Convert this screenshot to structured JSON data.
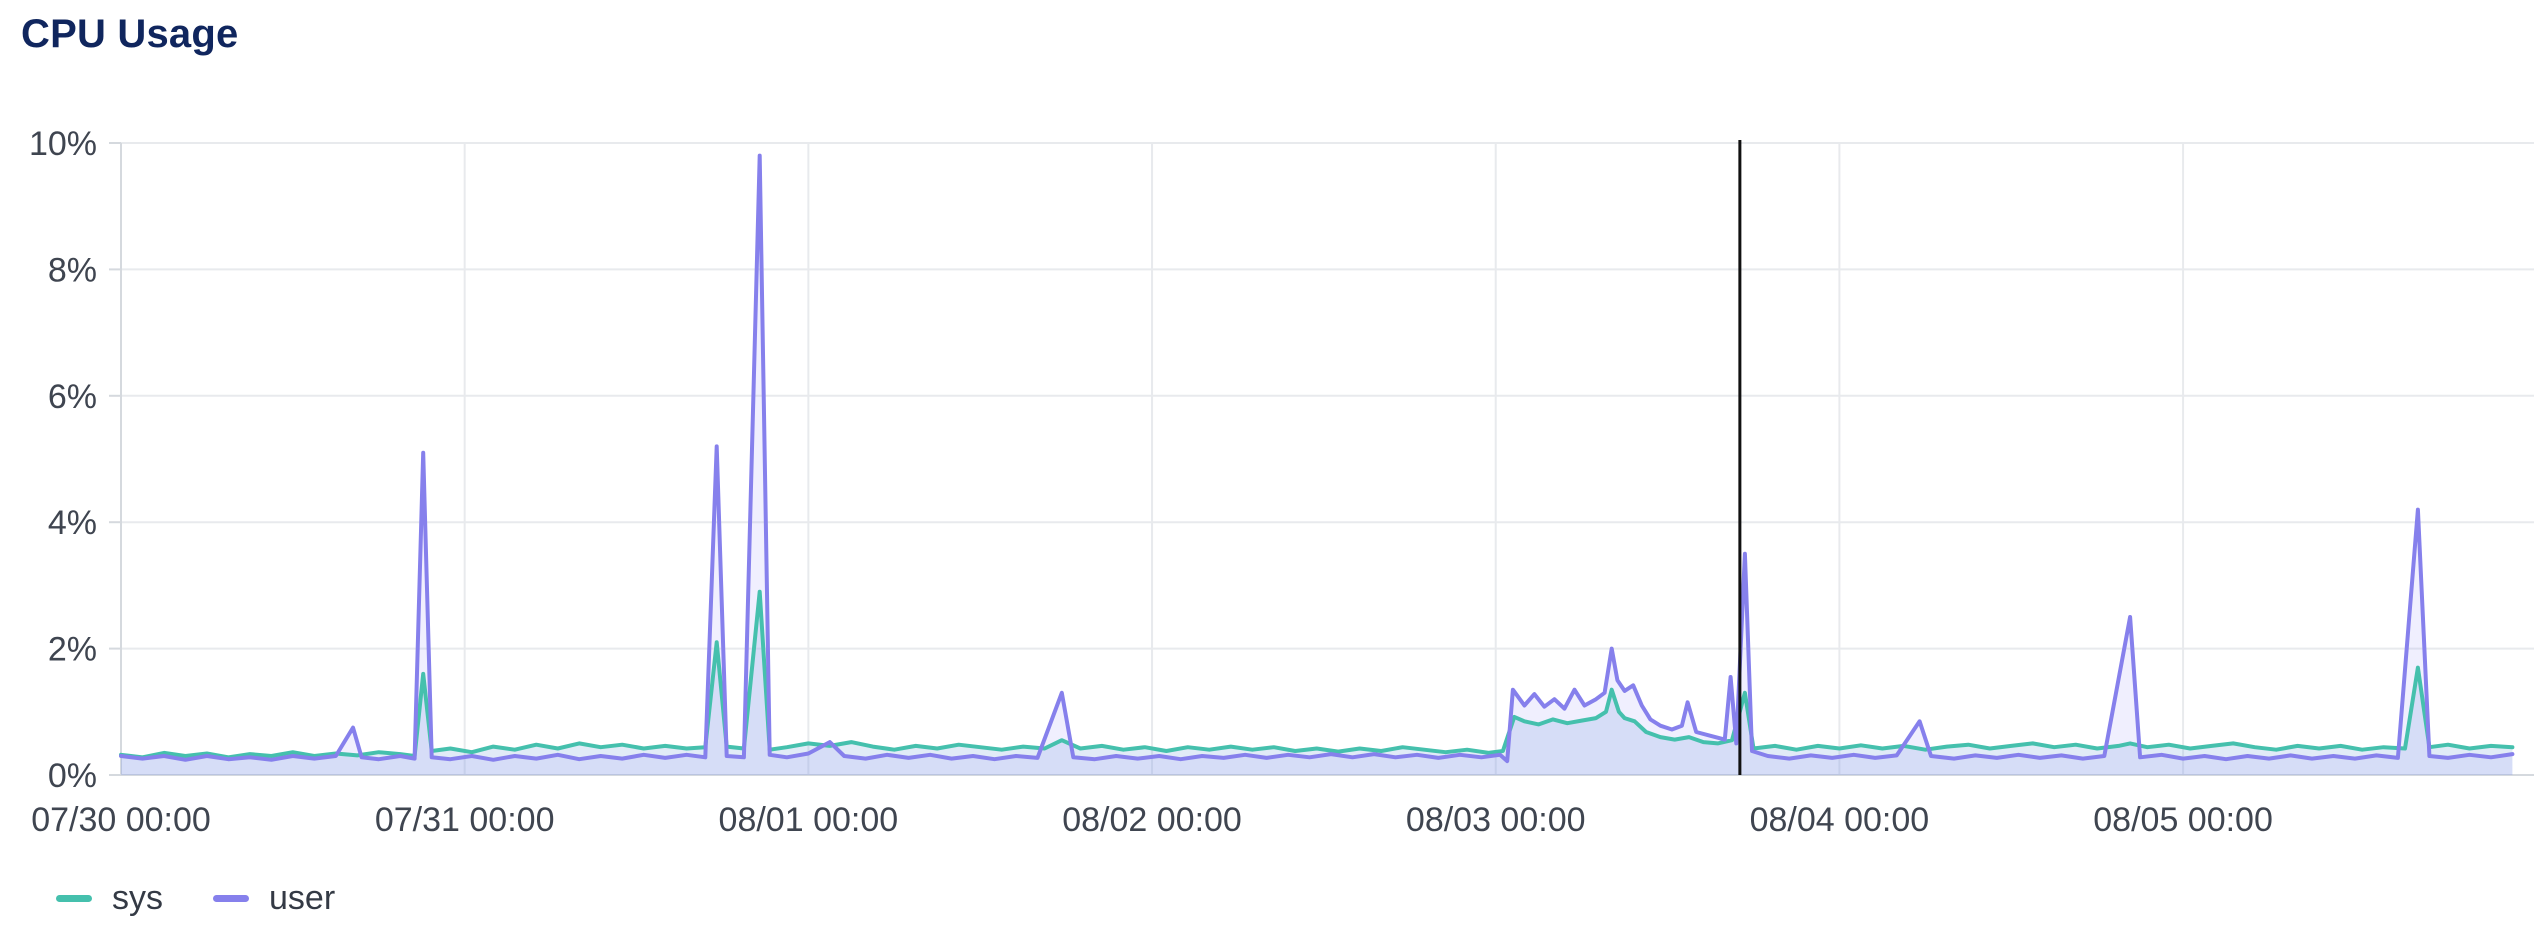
{
  "panel": {
    "title": "CPU Usage"
  },
  "colors": {
    "title": "#10265e",
    "axis_text": "#3f4550",
    "grid": "#e8eaed",
    "axis_line": "#d5d9de",
    "annotation": "#111111",
    "sys_line": "#45c0ad",
    "user_line": "#8680ec",
    "sys_fill": "rgba(120,165,220,0.22)",
    "user_fill": "rgba(150,140,245,0.14)"
  },
  "chart_data": {
    "type": "line",
    "area": true,
    "title": "CPU Usage",
    "xlabel": "",
    "ylabel": "",
    "grid": true,
    "legend_position": "bottom-left",
    "x_unit": "hours since 07/30 00:00",
    "x_domain": [
      0,
      167
    ],
    "ylim": [
      0,
      10
    ],
    "y_ticks": [
      0,
      2,
      4,
      6,
      8,
      10
    ],
    "y_tick_labels": [
      "0%",
      "2%",
      "4%",
      "6%",
      "8%",
      "10%"
    ],
    "x_ticks": [
      0,
      24,
      48,
      72,
      96,
      120,
      144
    ],
    "x_tick_labels": [
      "07/30 00:00",
      "07/31 00:00",
      "08/01 00:00",
      "08/02 00:00",
      "08/03 00:00",
      "08/04 00:00",
      "08/05 00:00"
    ],
    "annotation_line": {
      "hour": 113.05,
      "label": "time marker 08/03 ~17:00"
    },
    "series": [
      {
        "name": "sys",
        "points": [
          [
            0,
            0.32
          ],
          [
            1.5,
            0.28
          ],
          [
            3,
            0.35
          ],
          [
            4.5,
            0.3
          ],
          [
            6,
            0.34
          ],
          [
            7.5,
            0.28
          ],
          [
            9,
            0.33
          ],
          [
            10.5,
            0.3
          ],
          [
            12,
            0.36
          ],
          [
            13.5,
            0.3
          ],
          [
            15,
            0.34
          ],
          [
            16.5,
            0.31
          ],
          [
            18,
            0.36
          ],
          [
            19.5,
            0.33
          ],
          [
            20.5,
            0.3
          ],
          [
            21.1,
            1.6
          ],
          [
            21.7,
            0.38
          ],
          [
            23,
            0.42
          ],
          [
            24.5,
            0.36
          ],
          [
            26,
            0.45
          ],
          [
            27.5,
            0.4
          ],
          [
            29,
            0.48
          ],
          [
            30.5,
            0.42
          ],
          [
            32,
            0.5
          ],
          [
            33.5,
            0.44
          ],
          [
            35,
            0.48
          ],
          [
            36.5,
            0.42
          ],
          [
            38,
            0.46
          ],
          [
            39.5,
            0.42
          ],
          [
            40.8,
            0.44
          ],
          [
            41.6,
            2.1
          ],
          [
            42.3,
            0.45
          ],
          [
            43.5,
            0.42
          ],
          [
            44.6,
            2.9
          ],
          [
            45.3,
            0.4
          ],
          [
            46.5,
            0.44
          ],
          [
            48,
            0.5
          ],
          [
            49.5,
            0.46
          ],
          [
            51,
            0.52
          ],
          [
            52.5,
            0.45
          ],
          [
            54,
            0.4
          ],
          [
            55.5,
            0.46
          ],
          [
            57,
            0.42
          ],
          [
            58.5,
            0.48
          ],
          [
            60,
            0.44
          ],
          [
            61.5,
            0.4
          ],
          [
            63,
            0.45
          ],
          [
            64.5,
            0.42
          ],
          [
            65.7,
            0.55
          ],
          [
            67,
            0.42
          ],
          [
            68.5,
            0.46
          ],
          [
            70,
            0.4
          ],
          [
            71.5,
            0.44
          ],
          [
            73,
            0.38
          ],
          [
            74.5,
            0.44
          ],
          [
            76,
            0.4
          ],
          [
            77.5,
            0.45
          ],
          [
            79,
            0.4
          ],
          [
            80.5,
            0.44
          ],
          [
            82,
            0.38
          ],
          [
            83.5,
            0.42
          ],
          [
            85,
            0.37
          ],
          [
            86.5,
            0.42
          ],
          [
            88,
            0.38
          ],
          [
            89.5,
            0.44
          ],
          [
            91,
            0.4
          ],
          [
            92.5,
            0.36
          ],
          [
            94,
            0.4
          ],
          [
            95.5,
            0.35
          ],
          [
            96.5,
            0.38
          ],
          [
            97.3,
            0.92
          ],
          [
            98,
            0.85
          ],
          [
            99,
            0.8
          ],
          [
            100,
            0.88
          ],
          [
            101,
            0.82
          ],
          [
            102,
            0.86
          ],
          [
            103,
            0.9
          ],
          [
            103.7,
            1.0
          ],
          [
            104.1,
            1.35
          ],
          [
            104.6,
            1.0
          ],
          [
            105,
            0.9
          ],
          [
            105.7,
            0.85
          ],
          [
            106.5,
            0.68
          ],
          [
            107.5,
            0.6
          ],
          [
            108.5,
            0.56
          ],
          [
            109.5,
            0.6
          ],
          [
            110.5,
            0.52
          ],
          [
            111.5,
            0.5
          ],
          [
            112.5,
            0.55
          ],
          [
            113.4,
            1.3
          ],
          [
            114,
            0.42
          ],
          [
            115.5,
            0.46
          ],
          [
            117,
            0.4
          ],
          [
            118.5,
            0.46
          ],
          [
            120,
            0.42
          ],
          [
            121.5,
            0.47
          ],
          [
            123,
            0.42
          ],
          [
            124.5,
            0.46
          ],
          [
            126,
            0.4
          ],
          [
            127.5,
            0.45
          ],
          [
            129,
            0.48
          ],
          [
            130.5,
            0.42
          ],
          [
            132,
            0.46
          ],
          [
            133.5,
            0.5
          ],
          [
            135,
            0.44
          ],
          [
            136.5,
            0.48
          ],
          [
            138,
            0.42
          ],
          [
            139.5,
            0.46
          ],
          [
            140.3,
            0.5
          ],
          [
            141.5,
            0.44
          ],
          [
            143,
            0.48
          ],
          [
            144.5,
            0.42
          ],
          [
            146,
            0.46
          ],
          [
            147.5,
            0.5
          ],
          [
            149,
            0.44
          ],
          [
            150.5,
            0.4
          ],
          [
            152,
            0.46
          ],
          [
            153.5,
            0.42
          ],
          [
            155,
            0.46
          ],
          [
            156.5,
            0.4
          ],
          [
            158,
            0.44
          ],
          [
            159.5,
            0.42
          ],
          [
            160.4,
            1.7
          ],
          [
            161.2,
            0.44
          ],
          [
            162.5,
            0.48
          ],
          [
            164,
            0.42
          ],
          [
            165.5,
            0.46
          ],
          [
            167,
            0.44
          ]
        ]
      },
      {
        "name": "user",
        "points": [
          [
            0,
            0.3
          ],
          [
            1.5,
            0.26
          ],
          [
            3,
            0.3
          ],
          [
            4.5,
            0.24
          ],
          [
            6,
            0.3
          ],
          [
            7.5,
            0.25
          ],
          [
            9,
            0.28
          ],
          [
            10.5,
            0.24
          ],
          [
            12,
            0.3
          ],
          [
            13.5,
            0.26
          ],
          [
            15,
            0.3
          ],
          [
            16.2,
            0.75
          ],
          [
            16.8,
            0.28
          ],
          [
            18,
            0.25
          ],
          [
            19.5,
            0.3
          ],
          [
            20.5,
            0.26
          ],
          [
            21.1,
            5.1
          ],
          [
            21.7,
            0.28
          ],
          [
            23,
            0.25
          ],
          [
            24.5,
            0.3
          ],
          [
            26,
            0.24
          ],
          [
            27.5,
            0.3
          ],
          [
            29,
            0.26
          ],
          [
            30.5,
            0.32
          ],
          [
            32,
            0.25
          ],
          [
            33.5,
            0.3
          ],
          [
            35,
            0.26
          ],
          [
            36.5,
            0.32
          ],
          [
            38,
            0.27
          ],
          [
            39.5,
            0.32
          ],
          [
            40.8,
            0.28
          ],
          [
            41.6,
            5.2
          ],
          [
            42.3,
            0.3
          ],
          [
            43.5,
            0.28
          ],
          [
            44.6,
            9.8
          ],
          [
            45.3,
            0.32
          ],
          [
            46.5,
            0.28
          ],
          [
            48,
            0.34
          ],
          [
            49.5,
            0.52
          ],
          [
            50.5,
            0.3
          ],
          [
            52,
            0.26
          ],
          [
            53.5,
            0.32
          ],
          [
            55,
            0.27
          ],
          [
            56.5,
            0.32
          ],
          [
            58,
            0.26
          ],
          [
            59.5,
            0.3
          ],
          [
            61,
            0.25
          ],
          [
            62.5,
            0.3
          ],
          [
            64,
            0.27
          ],
          [
            65.7,
            1.3
          ],
          [
            66.5,
            0.28
          ],
          [
            68,
            0.25
          ],
          [
            69.5,
            0.3
          ],
          [
            71,
            0.26
          ],
          [
            72.5,
            0.3
          ],
          [
            74,
            0.25
          ],
          [
            75.5,
            0.3
          ],
          [
            77,
            0.27
          ],
          [
            78.5,
            0.32
          ],
          [
            80,
            0.27
          ],
          [
            81.5,
            0.32
          ],
          [
            83,
            0.28
          ],
          [
            84.5,
            0.33
          ],
          [
            86,
            0.28
          ],
          [
            87.5,
            0.33
          ],
          [
            89,
            0.28
          ],
          [
            90.5,
            0.32
          ],
          [
            92,
            0.27
          ],
          [
            93.5,
            0.32
          ],
          [
            95,
            0.28
          ],
          [
            96.3,
            0.32
          ],
          [
            96.8,
            0.22
          ],
          [
            97.2,
            1.35
          ],
          [
            98,
            1.1
          ],
          [
            98.7,
            1.28
          ],
          [
            99.4,
            1.08
          ],
          [
            100.1,
            1.2
          ],
          [
            100.8,
            1.05
          ],
          [
            101.5,
            1.35
          ],
          [
            102.2,
            1.1
          ],
          [
            103,
            1.2
          ],
          [
            103.6,
            1.3
          ],
          [
            104.1,
            2.0
          ],
          [
            104.5,
            1.5
          ],
          [
            105,
            1.33
          ],
          [
            105.6,
            1.42
          ],
          [
            106.2,
            1.1
          ],
          [
            106.8,
            0.88
          ],
          [
            107.5,
            0.78
          ],
          [
            108.3,
            0.72
          ],
          [
            109,
            0.78
          ],
          [
            109.4,
            1.15
          ],
          [
            110,
            0.68
          ],
          [
            111,
            0.62
          ],
          [
            112,
            0.56
          ],
          [
            112.4,
            1.55
          ],
          [
            112.8,
            0.5
          ],
          [
            113.4,
            3.5
          ],
          [
            113.9,
            0.38
          ],
          [
            115,
            0.3
          ],
          [
            116.5,
            0.26
          ],
          [
            118,
            0.31
          ],
          [
            119.5,
            0.27
          ],
          [
            121,
            0.32
          ],
          [
            122.5,
            0.27
          ],
          [
            124,
            0.31
          ],
          [
            125.6,
            0.85
          ],
          [
            126.4,
            0.3
          ],
          [
            128,
            0.26
          ],
          [
            129.5,
            0.31
          ],
          [
            131,
            0.27
          ],
          [
            132.5,
            0.32
          ],
          [
            134,
            0.27
          ],
          [
            135.5,
            0.31
          ],
          [
            137,
            0.26
          ],
          [
            138.5,
            0.3
          ],
          [
            140.3,
            2.5
          ],
          [
            141,
            0.28
          ],
          [
            142.5,
            0.32
          ],
          [
            144,
            0.26
          ],
          [
            145.5,
            0.3
          ],
          [
            147,
            0.25
          ],
          [
            148.5,
            0.3
          ],
          [
            150,
            0.26
          ],
          [
            151.5,
            0.31
          ],
          [
            153,
            0.26
          ],
          [
            154.5,
            0.3
          ],
          [
            156,
            0.26
          ],
          [
            157.5,
            0.31
          ],
          [
            159,
            0.27
          ],
          [
            160.4,
            4.2
          ],
          [
            161.2,
            0.3
          ],
          [
            162.5,
            0.27
          ],
          [
            164,
            0.32
          ],
          [
            165.5,
            0.28
          ],
          [
            167,
            0.33
          ]
        ]
      }
    ]
  }
}
